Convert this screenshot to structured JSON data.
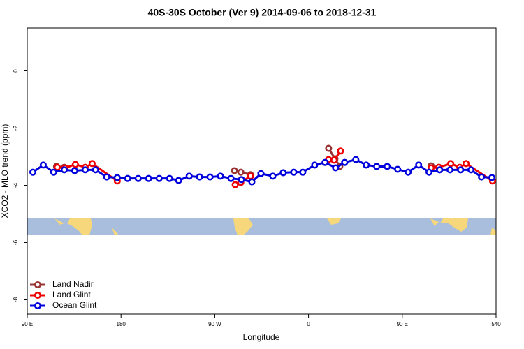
{
  "chart_data": {
    "type": "line",
    "title": "40S-30S October (Ver 9)   2014-09-06 to 2018-12-31",
    "x_label": "Longitude",
    "y_label": "XCO2 - MLO trend (ppm)",
    "xlim": [
      90,
      540
    ],
    "ylim": [
      -8.5,
      1.5
    ],
    "xticks": [
      {
        "value": 90,
        "label": "90 E"
      },
      180,
      {
        "value": 270,
        "label": "90 W"
      },
      {
        "value": 360,
        "label": "0"
      },
      {
        "value": 450,
        "label": "90 E"
      },
      540
    ],
    "yticks": [
      0,
      -2,
      -4,
      -6,
      -8
    ],
    "legend": "bottom-left",
    "series": [
      {
        "name": "Land Nadir",
        "color": "#993333",
        "x": [
          118.1,
          125.5,
          200,
          288.9,
          295.0,
          304.3,
          340,
          379.3,
          385.4,
          390.0,
          430,
          477.7,
          485.1
        ],
        "values": [
          -3.34,
          -3.37,
          null,
          -3.49,
          -3.54,
          -3.63,
          null,
          -2.71,
          -3.07,
          -3.34,
          null,
          -3.32,
          -3.37
        ]
      },
      {
        "name": "Land Glint",
        "color": "#ee0000",
        "x": [
          118.8,
          126.2,
          136.2,
          145.6,
          152.3,
          176.4,
          230,
          289.6,
          295.0,
          304.3,
          340,
          379.3,
          384.6,
          390.7,
          430,
          477.7,
          485.1,
          496.5,
          505.2,
          511.2,
          536.6
        ],
        "values": [
          -3.37,
          -3.39,
          -3.27,
          -3.37,
          -3.24,
          -3.85,
          null,
          -3.98,
          -3.9,
          -3.68,
          null,
          -3.1,
          -3.12,
          -2.8,
          null,
          -3.39,
          -3.37,
          -3.24,
          -3.37,
          -3.24,
          -3.85
        ]
      },
      {
        "name": "Ocean Glint",
        "color": "#0000dd",
        "x": [
          95.4,
          105.4,
          115.4,
          125.5,
          135.5,
          145.6,
          155.6,
          166.3,
          176.4,
          186.4,
          196.5,
          206.5,
          216.6,
          226.6,
          235.3,
          245.4,
          255.4,
          265.4,
          275.5,
          285.5,
          295.6,
          305.6,
          314.3,
          325.7,
          335.7,
          345.8,
          354.5,
          365.9,
          375.9,
          386.0,
          394.7,
          405.4,
          415.4,
          425.5,
          435.5,
          445.6,
          455.6,
          465.7,
          475.7,
          485.8,
          495.8,
          505.9,
          515.9,
          526.0,
          536.0
        ],
        "values": [
          -3.54,
          -3.29,
          -3.54,
          -3.46,
          -3.49,
          -3.46,
          -3.46,
          -3.71,
          -3.73,
          -3.76,
          -3.76,
          -3.76,
          -3.76,
          -3.76,
          -3.83,
          -3.68,
          -3.71,
          -3.71,
          -3.68,
          -3.76,
          -3.8,
          -3.88,
          -3.59,
          -3.68,
          -3.56,
          -3.54,
          -3.54,
          -3.29,
          -3.2,
          -3.39,
          -3.2,
          -3.1,
          -3.29,
          -3.34,
          -3.34,
          -3.44,
          -3.54,
          -3.29,
          -3.54,
          -3.46,
          -3.46,
          -3.46,
          -3.46,
          -3.71,
          -3.73
        ]
      }
    ]
  }
}
